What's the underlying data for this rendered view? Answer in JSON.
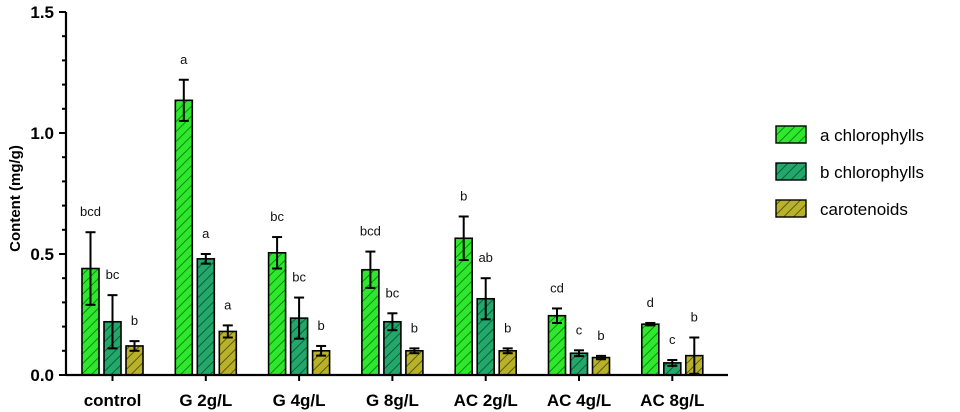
{
  "chart_data": {
    "type": "bar",
    "title": "",
    "xlabel": "",
    "ylabel": "Content (mg/g)",
    "ylim": [
      0,
      1.5
    ],
    "yticks": [
      "0.0",
      "0.5",
      "1.0",
      "1.5"
    ],
    "categories": [
      "control",
      "G  2g/L",
      "G  4g/L",
      "G  8g/L",
      "AC  2g/L",
      "AC  4g/L",
      "AC  8g/L"
    ],
    "legend_position": "right",
    "grid": false,
    "series": [
      {
        "name": "a chlorophylls",
        "color": "#2ee82e",
        "values": [
          0.44,
          1.135,
          0.505,
          0.435,
          0.565,
          0.245,
          0.21
        ],
        "errors": [
          0.15,
          0.085,
          0.065,
          0.075,
          0.09,
          0.03,
          0.005
        ],
        "significance": [
          "bcd",
          "a",
          "bc",
          "bcd",
          "b",
          "cd",
          "d"
        ]
      },
      {
        "name": "b chlorophylls",
        "color": "#22a86a",
        "values": [
          0.22,
          0.48,
          0.235,
          0.22,
          0.315,
          0.09,
          0.05
        ],
        "errors": [
          0.11,
          0.02,
          0.085,
          0.035,
          0.085,
          0.012,
          0.012
        ],
        "significance": [
          "bc",
          "a",
          "bc",
          "bc",
          "ab",
          "c",
          "c"
        ]
      },
      {
        "name": "carotenoids",
        "color": "#b8b22a",
        "values": [
          0.12,
          0.18,
          0.1,
          0.1,
          0.1,
          0.072,
          0.08
        ],
        "errors": [
          0.02,
          0.025,
          0.02,
          0.01,
          0.01,
          0.007,
          0.075
        ],
        "significance": [
          "b",
          "a",
          "b",
          "b",
          "b",
          "b",
          "b"
        ]
      }
    ]
  }
}
